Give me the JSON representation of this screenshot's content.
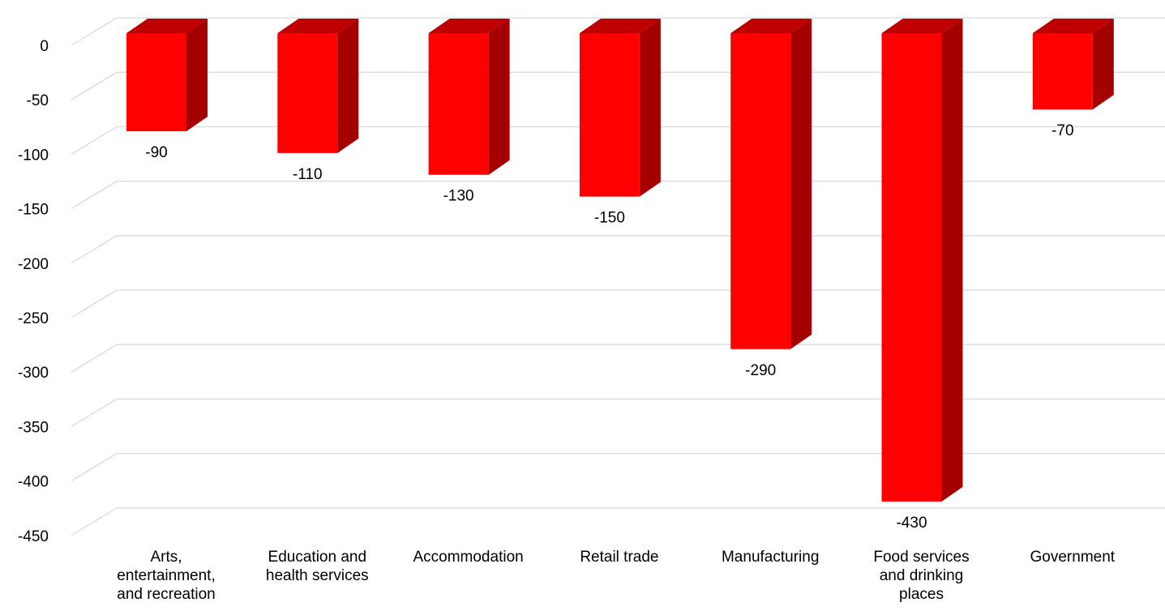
{
  "chart_data": {
    "type": "bar",
    "title": "",
    "xlabel": "",
    "ylabel": "",
    "categories": [
      "Arts, entertainment, and recreation",
      "Education and health services",
      "Accommodation",
      "Retail trade",
      "Manufacturing",
      "Food services and drinking places",
      "Government"
    ],
    "category_lines": [
      [
        "Arts,",
        "entertainment,",
        "and recreation"
      ],
      [
        "Education and",
        "health services"
      ],
      [
        "Accommodation"
      ],
      [
        "Retail trade"
      ],
      [
        "Manufacturing"
      ],
      [
        "Food services",
        "and drinking",
        "places"
      ],
      [
        "Government"
      ]
    ],
    "values": [
      -90,
      -110,
      -130,
      -150,
      -290,
      -430,
      -70
    ],
    "data_labels": [
      "-90",
      "-110",
      "-130",
      "-150",
      "-290",
      "-430",
      "-70"
    ],
    "ylim": [
      -450,
      0
    ],
    "yticks": [
      0,
      -50,
      -100,
      -150,
      -200,
      -250,
      -300,
      -350,
      -400,
      -450
    ],
    "ytick_labels": [
      "0",
      "-50",
      "-100",
      "-150",
      "-200",
      "-250",
      "-300",
      "-350",
      "-400",
      "-450"
    ],
    "grid": true,
    "legend": "none",
    "colors": {
      "bar_front": "#ff0000",
      "bar_side": "#a50000",
      "bar_top": "#c00000",
      "grid": "#d9d9d9",
      "text": "#000000"
    }
  }
}
